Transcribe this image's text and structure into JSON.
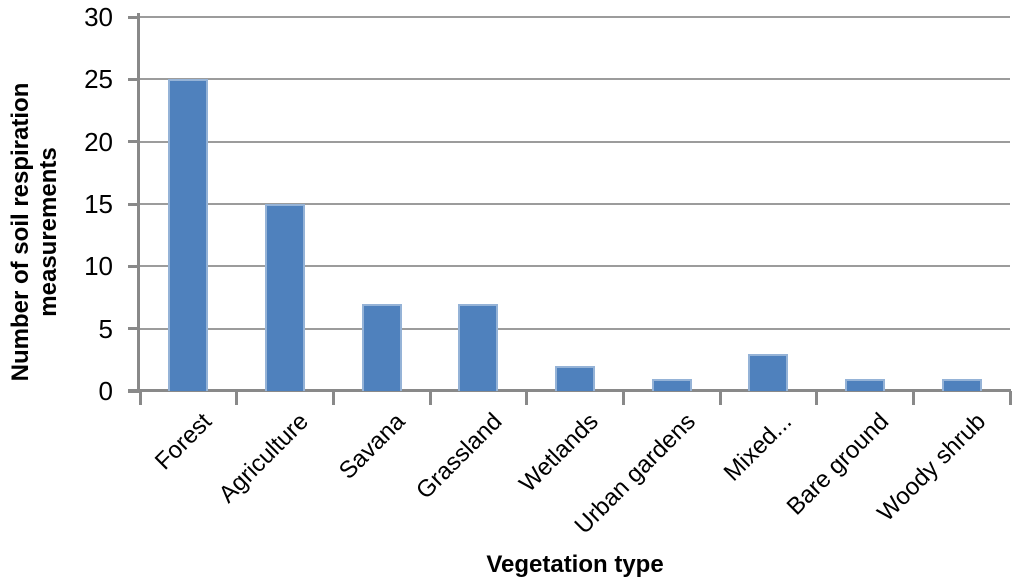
{
  "chart_data": {
    "type": "bar",
    "title": "",
    "categories": [
      "Forest",
      "Agriculture",
      "Savana",
      "Grassland",
      "Wetlands",
      "Urban gardens",
      "Mixed...",
      "Bare ground",
      "Woody shrub"
    ],
    "values": [
      25,
      15,
      7,
      7,
      2,
      1,
      3,
      1,
      1
    ],
    "xlabel": "Vegetation type",
    "ylabel": "Number of soil respiration measurements",
    "ylabel_lines": [
      "Number of soil respiration",
      "measurements"
    ],
    "yticks": [
      0,
      5,
      10,
      15,
      20,
      25,
      30
    ],
    "ylim": [
      0,
      30
    ],
    "grid": true,
    "legend": false,
    "category_label_rotation_deg": 45,
    "colors": {
      "bar_fill": "#4F81BD",
      "bar_edge": "#95B3D7",
      "gridline": "#9C9C9C",
      "axis": "#898989",
      "text": "#000000",
      "background": "#FFFFFF"
    }
  }
}
